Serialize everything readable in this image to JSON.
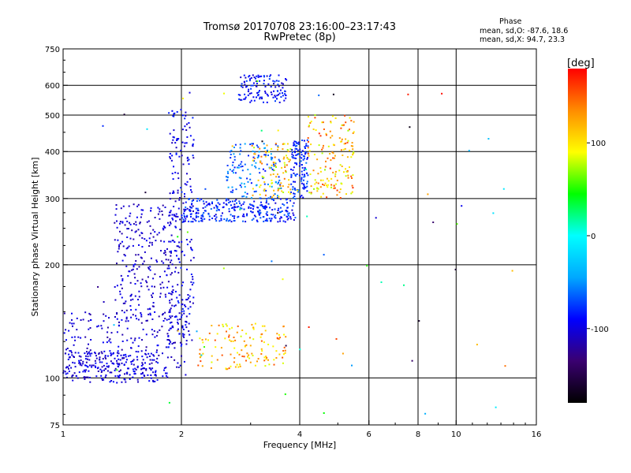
{
  "chart_data": {
    "type": "scatter",
    "title": "Tromsø 20170708 23:16:00–23:17:43",
    "subtitle": "RwPretec (8p)",
    "xlabel": "Frequency [MHz]",
    "ylabel": "Stationary phase Virtual Height [km]",
    "xscale": "log",
    "yscale": "log",
    "xlim": [
      1,
      16
    ],
    "ylim": [
      75,
      750
    ],
    "xticks": [
      1,
      2,
      4,
      6,
      8,
      10,
      16
    ],
    "yticks": [
      75,
      100,
      200,
      300,
      400,
      500,
      600,
      750
    ],
    "xgrid": [
      2,
      4,
      6,
      8,
      10
    ],
    "ygrid": [
      100,
      200,
      300,
      400,
      500,
      600
    ],
    "grid": true,
    "phase_info": {
      "title": "Phase",
      "line1": "mean, sd,O: -87.6, 18.6",
      "line2": "mean, sd,X:  94.7, 23.3"
    },
    "colorbar": {
      "label": "[deg]",
      "ticks": [
        100,
        0,
        -100
      ],
      "range": [
        -180,
        180
      ],
      "colors": [
        "#000000",
        "#3a0070",
        "#0000ff",
        "#00a8ff",
        "#00ffff",
        "#00ff00",
        "#ffff00",
        "#ff8c00",
        "#ff0000"
      ]
    },
    "clusters": [
      {
        "name": "low-E-blue",
        "x": [
          1.0,
          1.75
        ],
        "y": [
          97,
          118
        ],
        "n": 200,
        "phase": [
          -115,
          -85
        ]
      },
      {
        "name": "low-E-ramp",
        "x": [
          1.0,
          2.1
        ],
        "y": [
          100,
          150
        ],
        "n": 220,
        "phase": [
          -120,
          -90
        ]
      },
      {
        "name": "F-ramp",
        "x": [
          1.35,
          1.9
        ],
        "y": [
          140,
          290
        ],
        "n": 260,
        "phase": [
          -120,
          -90
        ]
      },
      {
        "name": "F-column",
        "x": [
          1.85,
          2.15
        ],
        "y": [
          120,
          520
        ],
        "n": 230,
        "phase": [
          -115,
          -80
        ]
      },
      {
        "name": "F-band",
        "x": [
          2.0,
          3.9
        ],
        "y": [
          260,
          300
        ],
        "n": 280,
        "phase": [
          -105,
          -60
        ]
      },
      {
        "name": "F-upper",
        "x": [
          2.6,
          3.6
        ],
        "y": [
          300,
          420
        ],
        "n": 140,
        "phase": [
          -90,
          -40
        ]
      },
      {
        "name": "F-rise",
        "x": [
          3.8,
          4.2
        ],
        "y": [
          300,
          430
        ],
        "n": 120,
        "phase": [
          -100,
          -60
        ]
      },
      {
        "name": "top-2hop",
        "x": [
          2.8,
          3.7
        ],
        "y": [
          540,
          640
        ],
        "n": 120,
        "phase": [
          -110,
          -70
        ]
      },
      {
        "name": "X-upper",
        "x": [
          3.0,
          3.8
        ],
        "y": [
          300,
          420
        ],
        "n": 90,
        "phase": [
          70,
          150
        ]
      },
      {
        "name": "X-band",
        "x": [
          4.2,
          5.5
        ],
        "y": [
          300,
          500
        ],
        "n": 160,
        "phase": [
          70,
          170
        ]
      },
      {
        "name": "X-E",
        "x": [
          2.2,
          3.7
        ],
        "y": [
          105,
          140
        ],
        "n": 130,
        "phase": [
          80,
          160
        ]
      },
      {
        "name": "scatter-sparse",
        "x": [
          1.2,
          14
        ],
        "y": [
          80,
          620
        ],
        "n": 70,
        "phase": [
          -180,
          180
        ]
      }
    ]
  }
}
